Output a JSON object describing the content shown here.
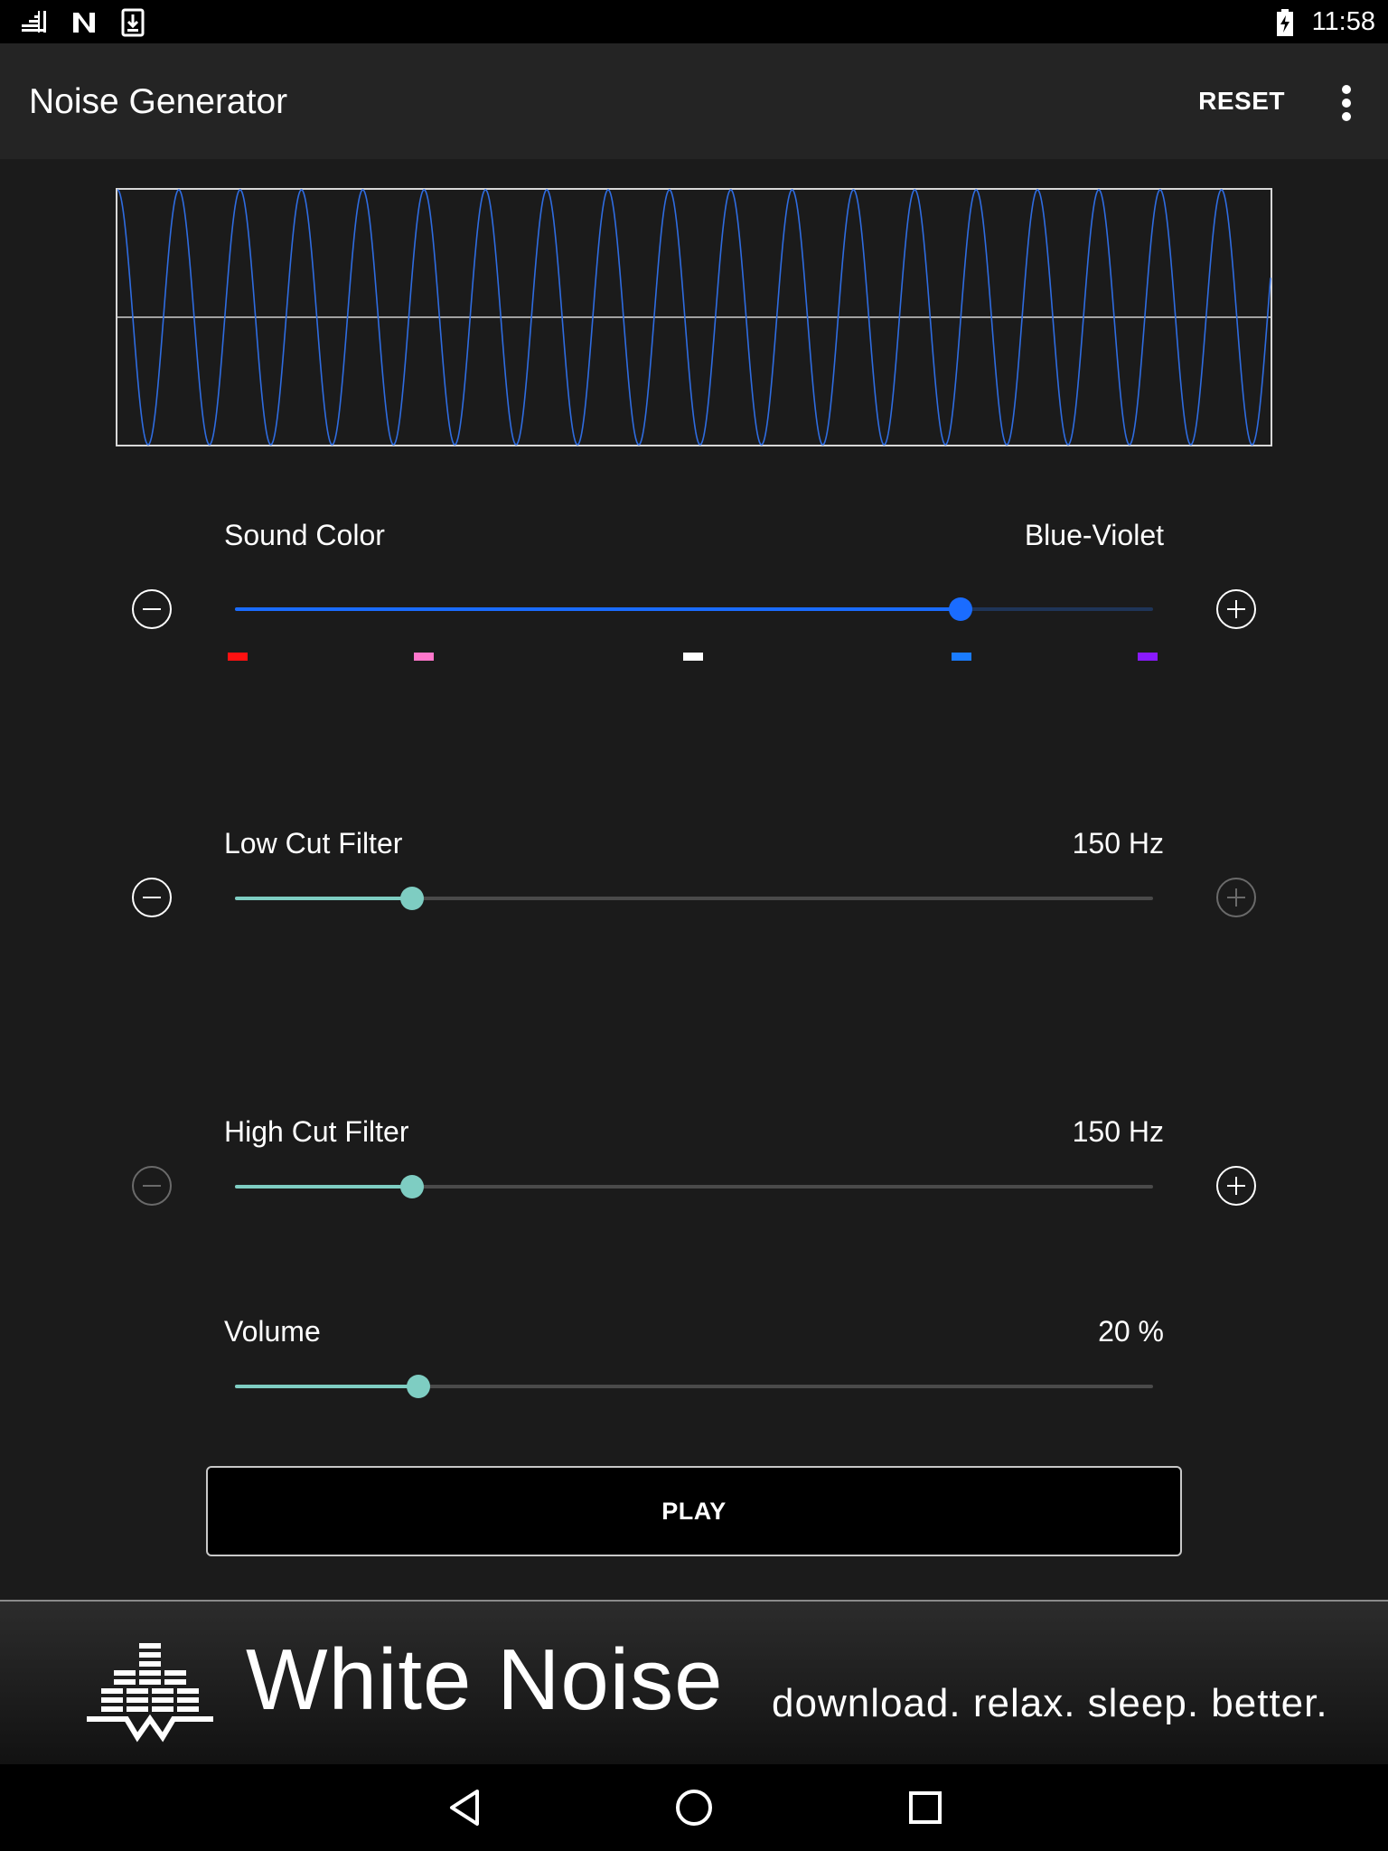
{
  "status_bar": {
    "time": "11:58"
  },
  "toolbar": {
    "title": "Noise Generator",
    "reset_label": "RESET"
  },
  "sound_color": {
    "label": "Sound Color",
    "value": "Blue-Violet",
    "level": 0.79,
    "accent": "#1a6cff",
    "swatch_colors": [
      "#ff1111",
      "#ff77cc",
      "#ffffff",
      "#1a7cff",
      "#8a1aff"
    ]
  },
  "low_cut": {
    "label": "Low Cut Filter",
    "value": "150 Hz",
    "level": 0.193,
    "accent": "#7ecdc2"
  },
  "high_cut": {
    "label": "High Cut Filter",
    "value": "150 Hz",
    "level": 0.193,
    "accent": "#7ecdc2"
  },
  "volume": {
    "label": "Volume",
    "value": "20 %",
    "level": 0.2,
    "accent": "#7ecdc2"
  },
  "play_label": "PLAY",
  "ad": {
    "title": "White Noise",
    "tagline": "download. relax. sleep. better."
  },
  "icons": {
    "status_left": [
      "signal-icon",
      "n-notification-icon",
      "download-icon"
    ],
    "status_right": [
      "battery-charging-icon"
    ],
    "toolbar": [
      "more-vert-icon"
    ],
    "controls": [
      "minus-circle-icon",
      "plus-circle-icon"
    ],
    "nav": [
      "back-icon",
      "home-icon",
      "recents-icon"
    ]
  }
}
